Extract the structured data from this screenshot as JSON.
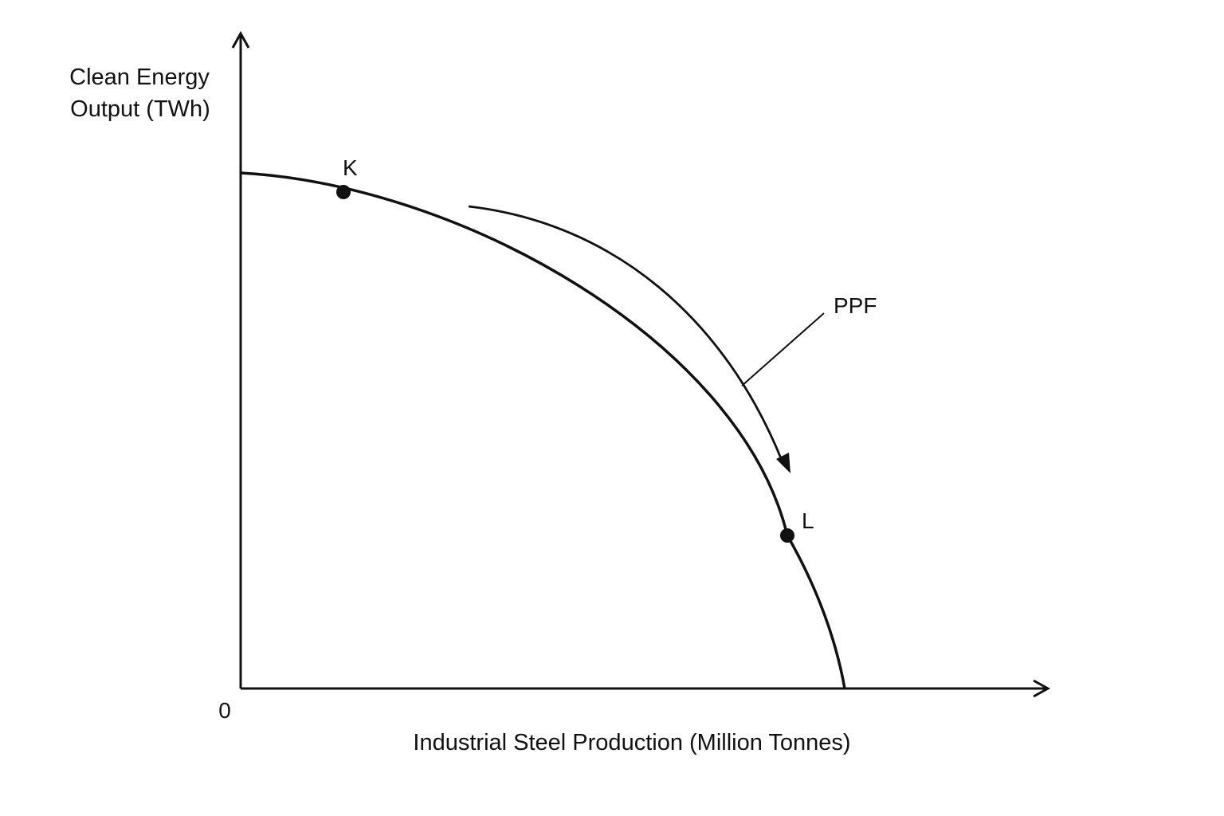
{
  "diagram": {
    "y_axis_label_line1": "Clean Energy",
    "y_axis_label_line2": "Output (TWh)",
    "x_axis_label": "Industrial Steel Production (Million Tonnes)",
    "origin_label": "0",
    "curve_label": "PPF",
    "points": [
      {
        "id": "K",
        "label": "K"
      },
      {
        "id": "L",
        "label": "L"
      }
    ],
    "colors": {
      "ink": "#111111",
      "background": "#ffffff"
    }
  }
}
